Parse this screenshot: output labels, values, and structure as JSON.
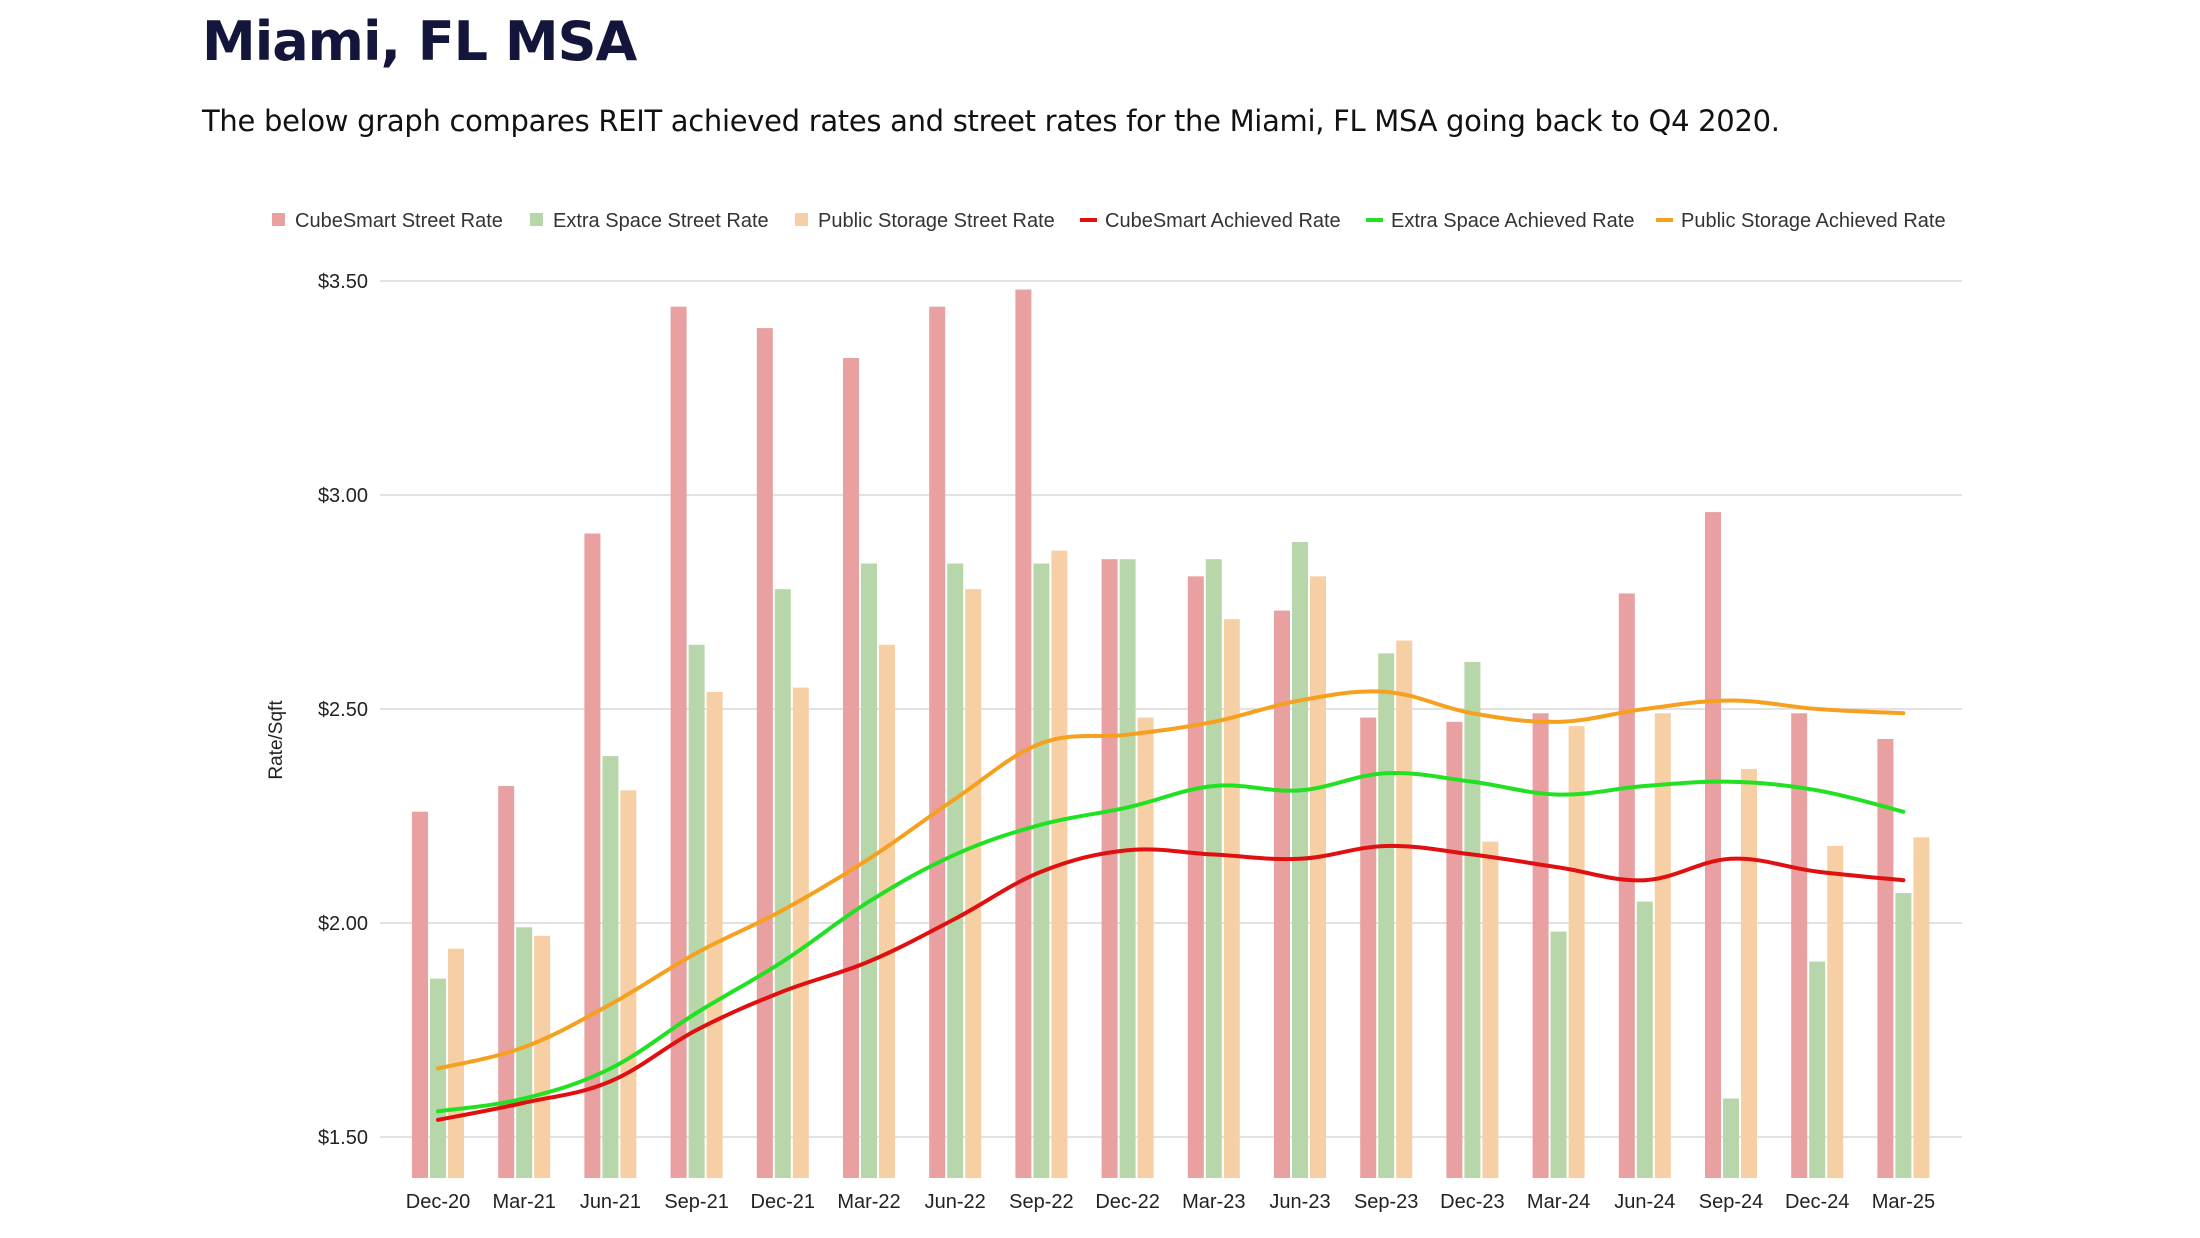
{
  "header": {
    "title": "Miami, FL MSA",
    "subtitle": "The below graph compares REIT achieved rates and street rates for the Miami, FL MSA going back to Q4 2020."
  },
  "chart_data": {
    "type": "bar",
    "title": "",
    "xlabel": "",
    "ylabel": "Rate/Sqft",
    "ylim": [
      1.4,
      3.5
    ],
    "yticks": [
      1.5,
      2.0,
      2.5,
      3.0,
      3.5
    ],
    "ytick_labels": [
      "$1.50",
      "$2.00",
      "$2.50",
      "$3.00",
      "$3.50"
    ],
    "grid": true,
    "legend_position": "top",
    "categories": [
      "Dec-20",
      "Mar-21",
      "Jun-21",
      "Sep-21",
      "Dec-21",
      "Mar-22",
      "Jun-22",
      "Sep-22",
      "Dec-22",
      "Mar-23",
      "Jun-23",
      "Sep-23",
      "Dec-23",
      "Mar-24",
      "Jun-24",
      "Sep-24",
      "Dec-24",
      "Mar-25"
    ],
    "bar_series": [
      {
        "name": "CubeSmart Street Rate",
        "color": "#e8a0a0",
        "values": [
          2.26,
          2.32,
          2.91,
          3.44,
          3.39,
          3.32,
          3.44,
          3.48,
          2.85,
          2.81,
          2.73,
          2.48,
          2.47,
          2.49,
          2.77,
          2.96,
          2.49,
          2.43
        ]
      },
      {
        "name": "Extra Space Street Rate",
        "color": "#b7d7aa",
        "values": [
          1.87,
          1.99,
          2.39,
          2.65,
          2.78,
          2.84,
          2.84,
          2.84,
          2.85,
          2.85,
          2.89,
          2.63,
          2.61,
          1.98,
          2.05,
          1.59,
          1.91,
          2.07
        ]
      },
      {
        "name": "Public Storage Street Rate",
        "color": "#f7cfa4",
        "values": [
          1.94,
          1.97,
          2.31,
          2.54,
          2.55,
          2.65,
          2.78,
          2.87,
          2.48,
          2.71,
          2.81,
          2.66,
          2.19,
          2.46,
          2.49,
          2.36,
          2.18,
          2.2
        ]
      }
    ],
    "line_series": [
      {
        "name": "CubeSmart Achieved Rate",
        "color": "#e01010",
        "values": [
          1.54,
          1.58,
          1.63,
          1.75,
          1.84,
          1.91,
          2.01,
          2.12,
          2.17,
          2.16,
          2.15,
          2.18,
          2.16,
          2.13,
          2.1,
          2.15,
          2.12,
          2.1
        ]
      },
      {
        "name": "Extra Space Achieved Rate",
        "color": "#22e022",
        "values": [
          1.56,
          1.59,
          1.66,
          1.79,
          1.91,
          2.05,
          2.16,
          2.23,
          2.27,
          2.32,
          2.31,
          2.35,
          2.33,
          2.3,
          2.32,
          2.33,
          2.31,
          2.26
        ]
      },
      {
        "name": "Public Storage Achieved Rate",
        "color": "#f5a01e",
        "values": [
          1.66,
          1.71,
          1.81,
          1.93,
          2.03,
          2.15,
          2.29,
          2.42,
          2.44,
          2.47,
          2.52,
          2.54,
          2.49,
          2.47,
          2.5,
          2.52,
          2.5,
          2.49
        ]
      }
    ]
  }
}
